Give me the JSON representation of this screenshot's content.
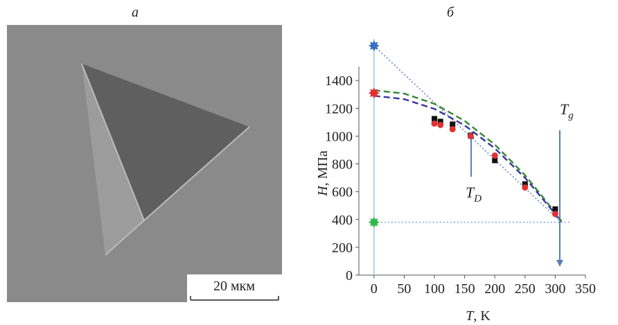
{
  "image_panel": {
    "label": "а",
    "scale_bar": "20 мкм"
  },
  "chart_data": {
    "type": "scatter",
    "label": "б",
    "xlabel": [
      "T",
      ", K"
    ],
    "ylabel": [
      "H",
      ", МПа"
    ],
    "annotations": [
      [
        "T",
        "D"
      ],
      [
        "T",
        "g"
      ]
    ],
    "xlim": [
      -25,
      350
    ],
    "ylim": [
      0,
      1700
    ],
    "xticks": [
      0,
      50,
      100,
      150,
      200,
      250,
      300,
      350
    ],
    "yticks": [
      0,
      200,
      400,
      600,
      800,
      1000,
      1200,
      1400
    ],
    "series": [
      {
        "style": "dotted",
        "color": "#6f8fc9",
        "x": [
          0,
          310
        ],
        "values": [
          1650,
          380
        ]
      },
      {
        "style": "dotted",
        "color": "#8fb0dd",
        "x": [
          0,
          325
        ],
        "values": [
          380,
          380
        ]
      },
      {
        "style": "dashed",
        "color": "#3a8a3a",
        "x": [
          0,
          50,
          100,
          150,
          200,
          250,
          300,
          310
        ],
        "values": [
          1330,
          1306,
          1232,
          1110,
          939,
          719,
          450,
          390
        ]
      },
      {
        "style": "dashed",
        "color": "#3a3aa0",
        "x": [
          0,
          50,
          100,
          150,
          200,
          250,
          300,
          310
        ],
        "values": [
          1290,
          1266,
          1196,
          1078,
          912,
          700,
          440,
          385
        ]
      },
      {
        "style": "square",
        "color": "#111111",
        "x": [
          100,
          110,
          130,
          160,
          200,
          250,
          300
        ],
        "values": [
          1120,
          1100,
          1080,
          1000,
          820,
          650,
          470
        ]
      },
      {
        "style": "circle",
        "color": "#e03030",
        "x": [
          100,
          110,
          130,
          160,
          200,
          250,
          300
        ],
        "values": [
          1090,
          1080,
          1050,
          1000,
          860,
          630,
          440
        ]
      },
      {
        "style": "star",
        "color": "#3a6fc0",
        "x": [
          0
        ],
        "values": [
          1650
        ]
      },
      {
        "style": "star",
        "color": "#e03030",
        "x": [
          0
        ],
        "values": [
          1310
        ]
      },
      {
        "style": "star",
        "color": "#2eb84a",
        "x": [
          0
        ],
        "values": [
          380
        ]
      }
    ]
  }
}
